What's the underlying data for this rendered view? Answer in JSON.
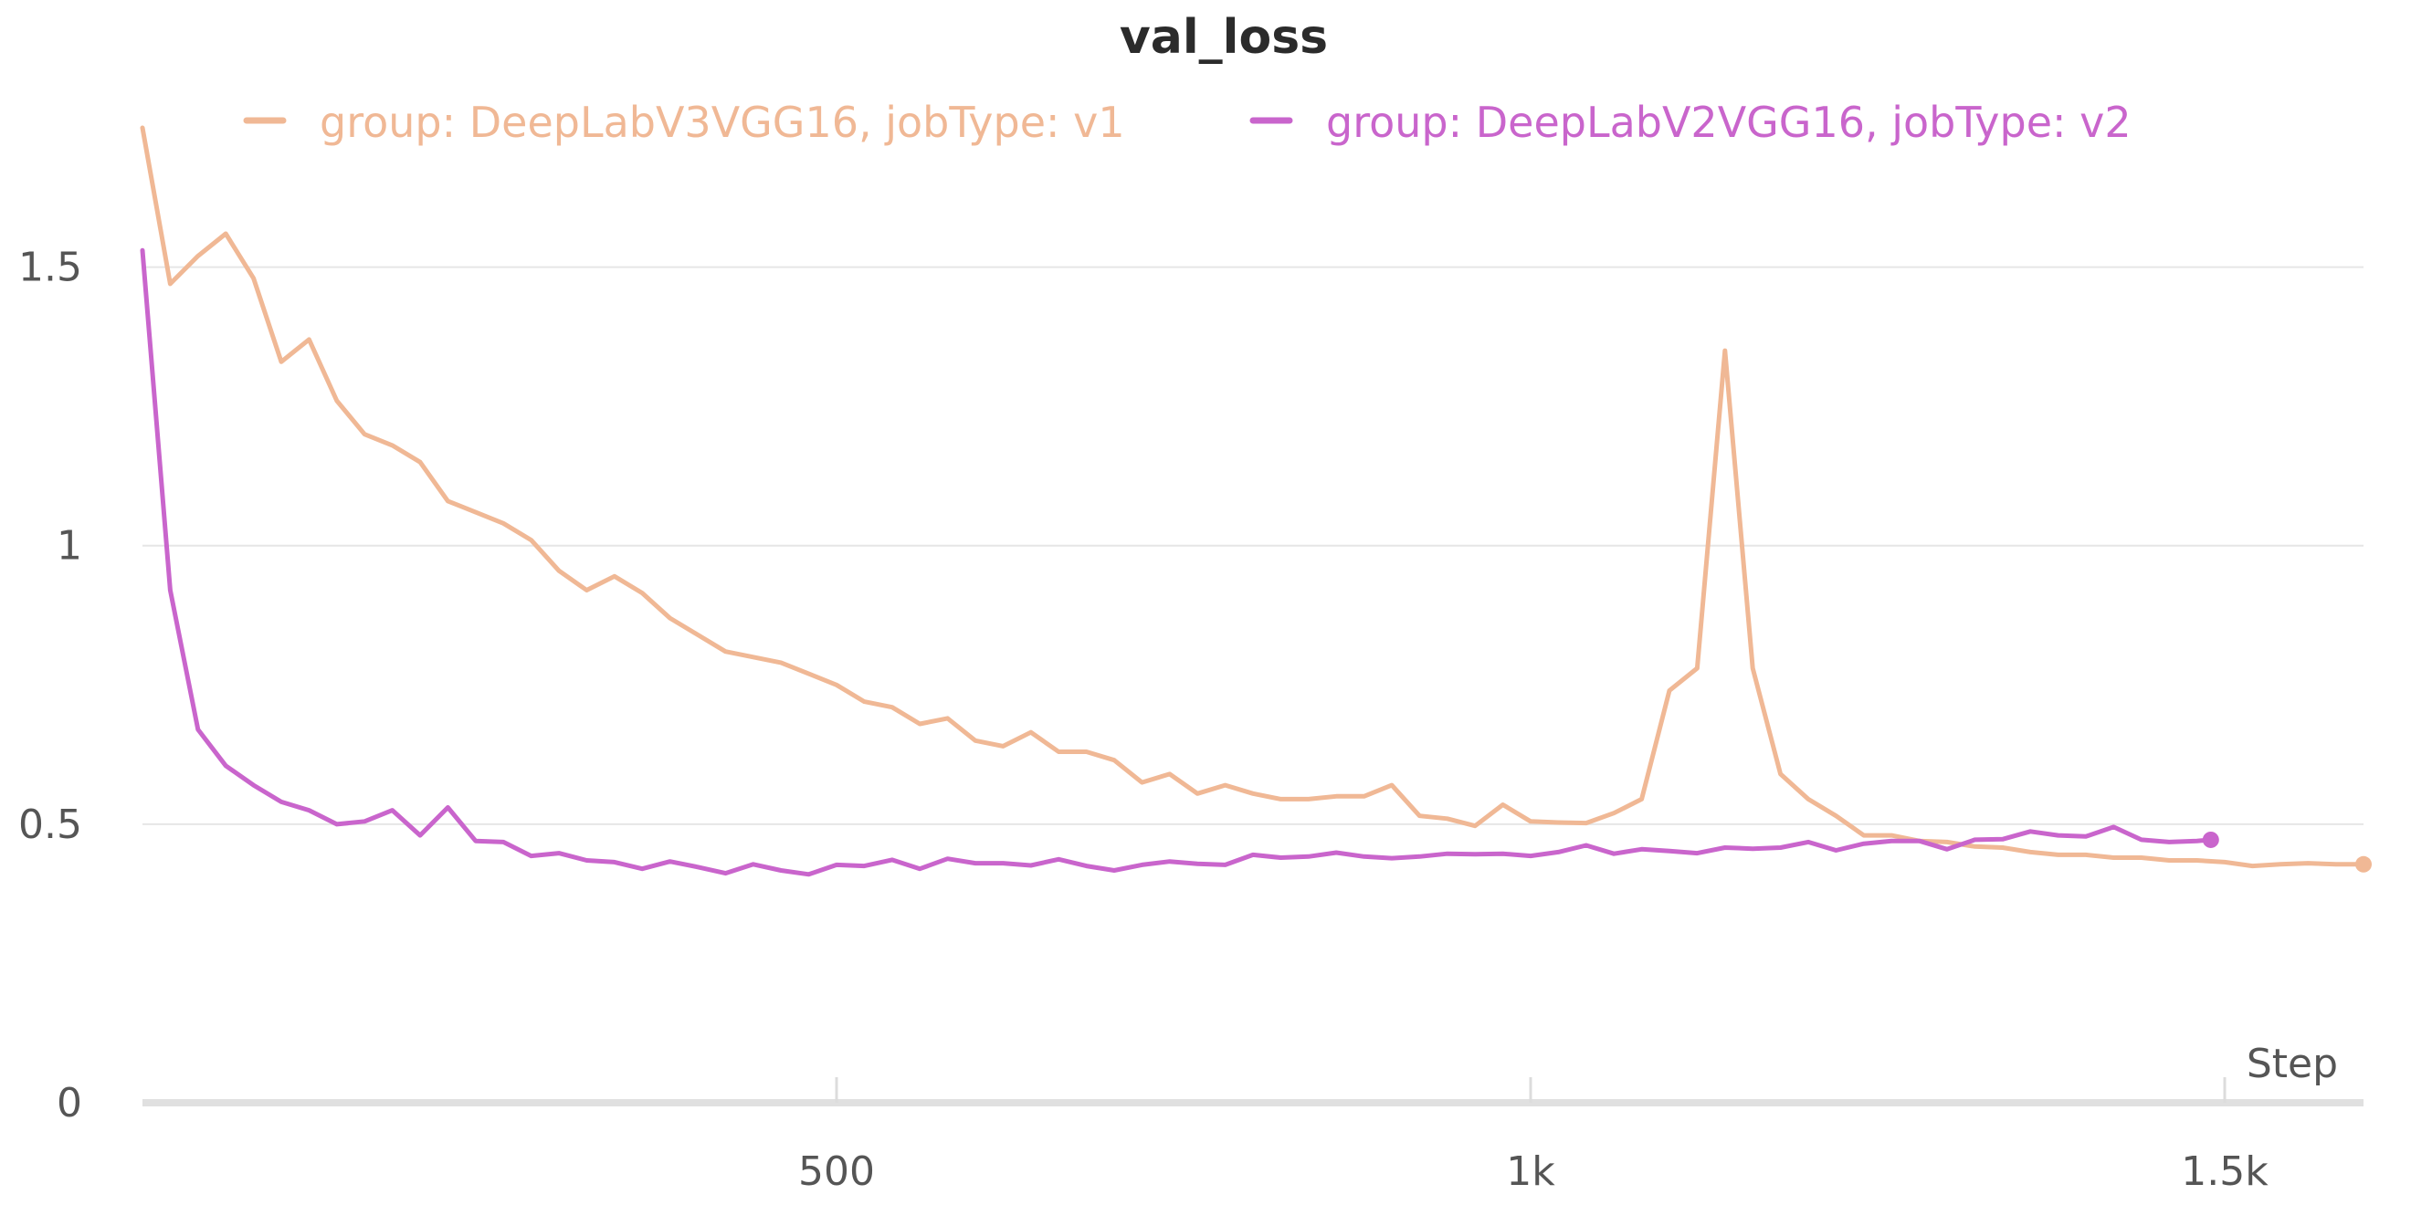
{
  "chart_data": {
    "type": "line",
    "title": "val_loss",
    "xlabel": "Step",
    "ylabel": "",
    "xlim": [
      0,
      1600
    ],
    "ylim": [
      0,
      1.75
    ],
    "grid": true,
    "legend": "top-center",
    "x_ticks": [
      {
        "value": 500,
        "label": "500"
      },
      {
        "value": 1000,
        "label": "1k"
      },
      {
        "value": 1500,
        "label": "1.5k"
      }
    ],
    "y_ticks": [
      {
        "value": 0,
        "label": "0"
      },
      {
        "value": 0.5,
        "label": "0.5"
      },
      {
        "value": 1,
        "label": "1"
      },
      {
        "value": 1.5,
        "label": "1.5"
      }
    ],
    "series": [
      {
        "name": "group: DeepLabV3VGG16, jobType: v1",
        "color": "#f0b895",
        "end_marker": true,
        "points": [
          [
            0,
            1.75
          ],
          [
            20,
            1.47
          ],
          [
            40,
            1.52
          ],
          [
            60,
            1.56
          ],
          [
            80,
            1.48
          ],
          [
            100,
            1.33
          ],
          [
            120,
            1.37
          ],
          [
            140,
            1.26
          ],
          [
            160,
            1.2
          ],
          [
            180,
            1.18
          ],
          [
            200,
            1.15
          ],
          [
            220,
            1.08
          ],
          [
            240,
            1.06
          ],
          [
            260,
            1.04
          ],
          [
            280,
            1.01
          ],
          [
            300,
            0.955
          ],
          [
            320,
            0.92
          ],
          [
            340,
            0.945
          ],
          [
            360,
            0.915
          ],
          [
            380,
            0.87
          ],
          [
            400,
            0.84
          ],
          [
            420,
            0.81
          ],
          [
            440,
            0.8
          ],
          [
            460,
            0.79
          ],
          [
            480,
            0.77
          ],
          [
            500,
            0.75
          ],
          [
            520,
            0.72
          ],
          [
            540,
            0.71
          ],
          [
            560,
            0.68
          ],
          [
            580,
            0.69
          ],
          [
            600,
            0.65
          ],
          [
            620,
            0.64
          ],
          [
            640,
            0.665
          ],
          [
            660,
            0.63
          ],
          [
            680,
            0.63
          ],
          [
            700,
            0.615
          ],
          [
            720,
            0.575
          ],
          [
            740,
            0.59
          ],
          [
            760,
            0.555
          ],
          [
            780,
            0.57
          ],
          [
            800,
            0.555
          ],
          [
            820,
            0.545
          ],
          [
            840,
            0.545
          ],
          [
            860,
            0.55
          ],
          [
            880,
            0.55
          ],
          [
            900,
            0.57
          ],
          [
            920,
            0.515
          ],
          [
            940,
            0.51
          ],
          [
            960,
            0.497
          ],
          [
            980,
            0.535
          ],
          [
            1000,
            0.505
          ],
          [
            1020,
            0.503
          ],
          [
            1040,
            0.502
          ],
          [
            1060,
            0.52
          ],
          [
            1080,
            0.545
          ],
          [
            1100,
            0.74
          ],
          [
            1120,
            0.78
          ],
          [
            1140,
            1.35
          ],
          [
            1160,
            0.78
          ],
          [
            1180,
            0.59
          ],
          [
            1200,
            0.545
          ],
          [
            1220,
            0.515
          ],
          [
            1240,
            0.48
          ],
          [
            1260,
            0.48
          ],
          [
            1280,
            0.47
          ],
          [
            1300,
            0.468
          ],
          [
            1320,
            0.46
          ],
          [
            1340,
            0.458
          ],
          [
            1360,
            0.45
          ],
          [
            1380,
            0.445
          ],
          [
            1400,
            0.445
          ],
          [
            1420,
            0.44
          ],
          [
            1440,
            0.44
          ],
          [
            1460,
            0.435
          ],
          [
            1480,
            0.435
          ],
          [
            1500,
            0.432
          ],
          [
            1520,
            0.425
          ],
          [
            1540,
            0.428
          ],
          [
            1560,
            0.43
          ],
          [
            1580,
            0.428
          ],
          [
            1600,
            0.428
          ]
        ]
      },
      {
        "name": "group: DeepLabV2VGG16, jobType: v2",
        "color": "#c965cc",
        "end_marker": true,
        "points": [
          [
            0,
            1.53
          ],
          [
            20,
            0.92
          ],
          [
            40,
            0.67
          ],
          [
            60,
            0.605
          ],
          [
            80,
            0.57
          ],
          [
            100,
            0.54
          ],
          [
            120,
            0.525
          ],
          [
            140,
            0.5
          ],
          [
            160,
            0.505
          ],
          [
            180,
            0.525
          ],
          [
            200,
            0.48
          ],
          [
            220,
            0.53
          ],
          [
            240,
            0.47
          ],
          [
            260,
            0.468
          ],
          [
            280,
            0.443
          ],
          [
            300,
            0.448
          ],
          [
            320,
            0.435
          ],
          [
            340,
            0.432
          ],
          [
            360,
            0.42
          ],
          [
            380,
            0.433
          ],
          [
            400,
            0.423
          ],
          [
            420,
            0.412
          ],
          [
            440,
            0.428
          ],
          [
            460,
            0.417
          ],
          [
            480,
            0.41
          ],
          [
            500,
            0.427
          ],
          [
            520,
            0.425
          ],
          [
            540,
            0.436
          ],
          [
            560,
            0.42
          ],
          [
            580,
            0.438
          ],
          [
            600,
            0.43
          ],
          [
            620,
            0.43
          ],
          [
            640,
            0.426
          ],
          [
            660,
            0.437
          ],
          [
            680,
            0.425
          ],
          [
            700,
            0.417
          ],
          [
            720,
            0.427
          ],
          [
            740,
            0.433
          ],
          [
            760,
            0.429
          ],
          [
            780,
            0.427
          ],
          [
            800,
            0.445
          ],
          [
            820,
            0.44
          ],
          [
            840,
            0.442
          ],
          [
            860,
            0.449
          ],
          [
            880,
            0.442
          ],
          [
            900,
            0.439
          ],
          [
            920,
            0.442
          ],
          [
            940,
            0.447
          ],
          [
            960,
            0.446
          ],
          [
            980,
            0.447
          ],
          [
            1000,
            0.443
          ],
          [
            1020,
            0.45
          ],
          [
            1040,
            0.462
          ],
          [
            1060,
            0.447
          ],
          [
            1080,
            0.455
          ],
          [
            1100,
            0.452
          ],
          [
            1120,
            0.448
          ],
          [
            1140,
            0.458
          ],
          [
            1160,
            0.456
          ],
          [
            1180,
            0.458
          ],
          [
            1200,
            0.468
          ],
          [
            1220,
            0.453
          ],
          [
            1240,
            0.465
          ],
          [
            1260,
            0.47
          ],
          [
            1280,
            0.47
          ],
          [
            1300,
            0.455
          ],
          [
            1320,
            0.472
          ],
          [
            1340,
            0.473
          ],
          [
            1360,
            0.487
          ],
          [
            1380,
            0.48
          ],
          [
            1400,
            0.478
          ],
          [
            1420,
            0.495
          ],
          [
            1440,
            0.472
          ],
          [
            1460,
            0.468
          ],
          [
            1480,
            0.47
          ],
          [
            1490,
            0.472
          ]
        ]
      }
    ]
  }
}
